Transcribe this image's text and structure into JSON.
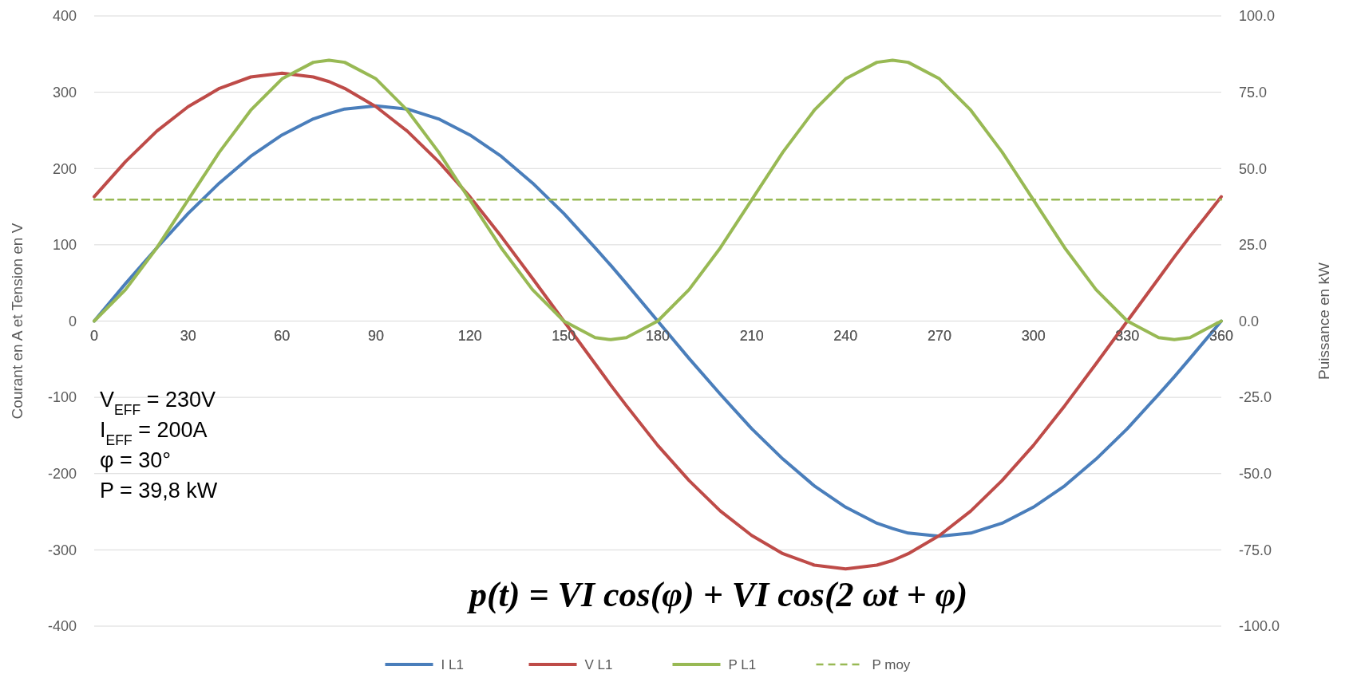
{
  "chart_data": {
    "type": "line",
    "x": [
      0,
      10,
      20,
      30,
      40,
      50,
      60,
      70,
      75,
      80,
      90,
      100,
      110,
      120,
      130,
      140,
      150,
      160,
      165,
      170,
      180,
      190,
      200,
      210,
      220,
      230,
      240,
      250,
      255,
      260,
      270,
      280,
      290,
      300,
      310,
      320,
      330,
      340,
      345,
      350,
      360
    ],
    "series": [
      {
        "name": "I L1",
        "color": "#4a7ebb",
        "values": [
          0,
          49,
          96,
          141,
          181,
          216,
          244,
          265,
          272,
          278,
          282,
          278,
          265,
          244,
          216,
          181,
          141,
          96,
          73,
          49,
          0,
          -49,
          -96,
          -141,
          -181,
          -216,
          -244,
          -265,
          -272,
          -278,
          -282,
          -278,
          -265,
          -244,
          -216,
          -181,
          -141,
          -96,
          -73,
          -49,
          0
        ]
      },
      {
        "name": "V L1",
        "color": "#be4b48",
        "values": [
          163,
          209,
          249,
          281,
          305,
          320,
          325,
          320,
          314,
          305,
          281,
          249,
          209,
          163,
          111,
          56,
          0,
          -56,
          -84,
          -111,
          -163,
          -209,
          -249,
          -281,
          -305,
          -320,
          -325,
          -320,
          -314,
          -305,
          -281,
          -249,
          -209,
          -163,
          -111,
          -56,
          0,
          56,
          84,
          111,
          163
        ]
      },
      {
        "name": "P L1",
        "color": "#98b954",
        "axis": "y2",
        "values": [
          0,
          10.3,
          24,
          39.7,
          55.4,
          69.1,
          79.4,
          84.8,
          85.5,
          84.8,
          79.4,
          69.1,
          55.4,
          39.7,
          24,
          10.3,
          0,
          -5.4,
          -6.1,
          -5.4,
          0,
          10.3,
          24,
          39.7,
          55.4,
          69.1,
          79.4,
          84.8,
          85.5,
          84.8,
          79.4,
          69.1,
          55.4,
          39.7,
          24,
          10.3,
          0,
          -5.4,
          -6.1,
          -5.4,
          0
        ]
      },
      {
        "name": "P moy",
        "color": "#98b954",
        "axis": "y2",
        "line_style": "dashed",
        "x": [
          0,
          360
        ],
        "values": [
          39.8,
          39.8
        ]
      }
    ],
    "ylabel": "Courant en A et Tension en V",
    "y2label": "Puissance en kW",
    "xlim": [
      0,
      360
    ],
    "xticks": [
      0,
      30,
      60,
      90,
      120,
      150,
      180,
      210,
      240,
      270,
      300,
      330,
      360
    ],
    "ylim": [
      -400,
      400
    ],
    "yticks": [
      -400,
      -300,
      -200,
      -100,
      0,
      100,
      200,
      300,
      400
    ],
    "y2lim": [
      -100,
      100
    ],
    "y2ticks": [
      {
        "value": -100,
        "label": "-100.0"
      },
      {
        "value": -75,
        "label": "-75.0"
      },
      {
        "value": -50,
        "label": "-50.0"
      },
      {
        "value": -25,
        "label": "-25.0"
      },
      {
        "value": 0,
        "label": "0.0"
      },
      {
        "value": 25,
        "label": "25.0"
      },
      {
        "value": 50,
        "label": "50.0"
      },
      {
        "value": 75,
        "label": "75.0"
      },
      {
        "value": 100,
        "label": "100.0"
      }
    ],
    "grid": "y",
    "legend": "bottom",
    "marker": "none",
    "line_style": "solid",
    "annotations": [
      "V$_{EFF}$ = 230V",
      "I$_{EFF}$ = 200A",
      "φ = 30°",
      "P = 39,8 kW",
      "p(t) = VI  cos(φ) + VI cos(2 ωt + φ)"
    ]
  }
}
